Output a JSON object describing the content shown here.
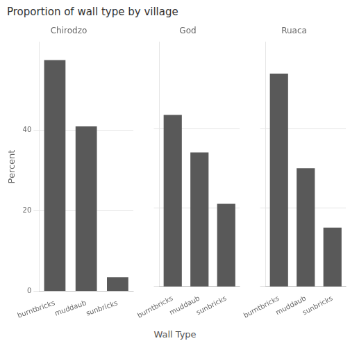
{
  "title": "Proportion of wall type by village",
  "xlabel": "Wall Type",
  "chart_data": [
    {
      "type": "bar",
      "title": "Chirodzo",
      "ylabel": "Percent",
      "categories": [
        "burntbricks",
        "muddaub",
        "sunbricks"
      ],
      "values": [
        57.5,
        41.0,
        3.5
      ],
      "color": "#595959",
      "ylim": [
        0,
        62
      ],
      "yticks": [
        0,
        20,
        40
      ],
      "grid": true
    },
    {
      "type": "bar",
      "title": "God",
      "categories": [
        "burntbricks",
        "muddaub",
        "sunbricks"
      ],
      "values": [
        43.5,
        34.0,
        21.0
      ],
      "color": "#595959",
      "ylim": [
        0,
        62
      ],
      "yticks": [
        0,
        20,
        40
      ],
      "grid": true,
      "tick_labels": "x"
    },
    {
      "type": "bar",
      "title": "Ruaca",
      "categories": [
        "burntbricks",
        "muddaub",
        "sunbricks"
      ],
      "values": [
        54.0,
        30.0,
        15.0
      ],
      "color": "#595959",
      "ylim": [
        0,
        62
      ],
      "yticks": [
        0,
        20,
        40
      ],
      "grid": true,
      "tick_labels": "x"
    }
  ]
}
